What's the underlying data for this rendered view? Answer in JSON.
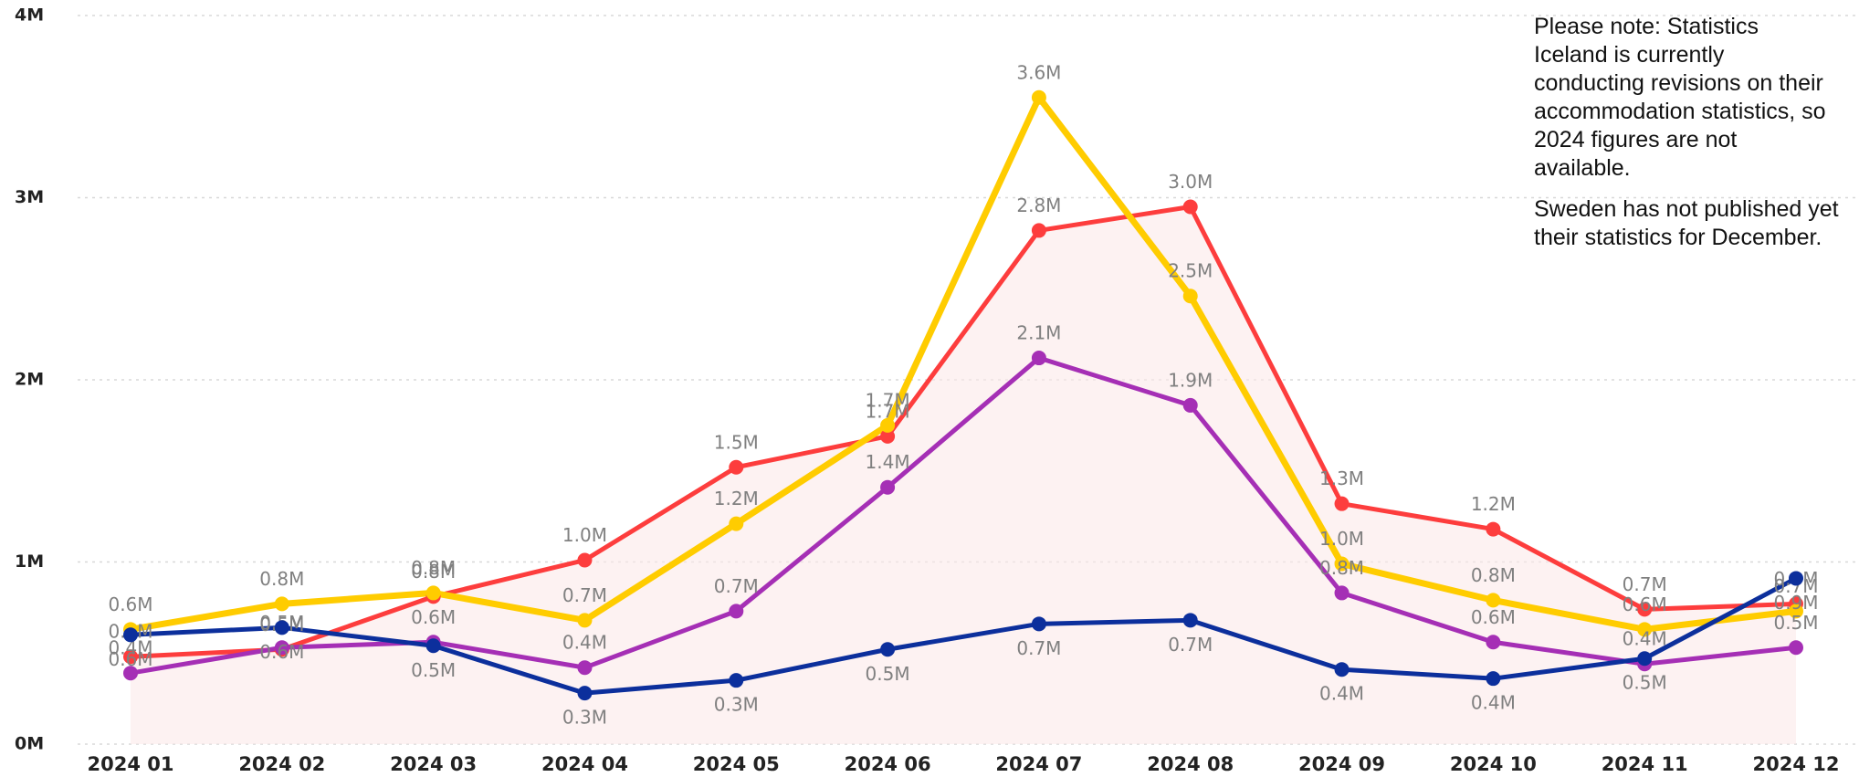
{
  "chart_data": {
    "type": "line",
    "categories": [
      "2024 01",
      "2024 02",
      "2024 03",
      "2024 04",
      "2024 05",
      "2024 06",
      "2024 07",
      "2024 08",
      "2024 09",
      "2024 10",
      "2024 11",
      "2024 12"
    ],
    "series": [
      {
        "color": "#fd3d3d",
        "values": [
          0.48,
          0.52,
          0.81,
          1.01,
          1.52,
          1.69,
          2.82,
          2.95,
          1.32,
          1.18,
          0.74,
          0.77
        ],
        "value_labels": [
          "0.5M",
          "0.5M",
          "0.8M",
          "1.0M",
          "1.5M",
          "1.7M",
          "2.8M",
          "3.0M",
          "1.3M",
          "1.2M",
          "0.7M",
          "0.8M"
        ]
      },
      {
        "color": "#ffcc00",
        "values": [
          0.63,
          0.77,
          0.83,
          0.68,
          1.21,
          1.75,
          3.55,
          2.46,
          0.99,
          0.79,
          0.63,
          0.73
        ],
        "value_labels": [
          "0.6M",
          "0.8M",
          "0.8M",
          "0.7M",
          "1.2M",
          "1.7M",
          "3.6M",
          "2.5M",
          "1.0M",
          "0.8M",
          "0.6M",
          "0.7M"
        ]
      },
      {
        "color": "#a52fb5",
        "values": [
          0.39,
          0.53,
          0.56,
          0.42,
          0.73,
          1.41,
          2.12,
          1.86,
          0.83,
          0.56,
          0.44,
          0.53
        ],
        "value_labels": [
          "0.4M",
          "0.5M",
          "0.6M",
          "0.4M",
          "0.7M",
          "1.4M",
          "2.1M",
          "1.9M",
          "0.8M",
          "0.6M",
          "0.4M",
          "0.5M"
        ]
      },
      {
        "color": "#0c2f9c",
        "values": [
          0.6,
          0.64,
          0.54,
          0.28,
          0.35,
          0.52,
          0.66,
          0.68,
          0.41,
          0.36,
          0.47,
          0.91
        ],
        "value_labels": [
          "0.6M",
          "0.6M",
          "0.5M",
          "0.3M",
          "0.3M",
          "0.5M",
          "0.7M",
          "0.7M",
          "0.4M",
          "0.4M",
          "0.5M",
          "0.9M"
        ]
      }
    ],
    "ylim": [
      0,
      4
    ],
    "yticks": [
      {
        "value": 0,
        "label": "0M"
      },
      {
        "value": 1,
        "label": "1M"
      },
      {
        "value": 2,
        "label": "2M"
      },
      {
        "value": 3,
        "label": "3M"
      },
      {
        "value": 4,
        "label": "4M"
      }
    ],
    "grid": true,
    "annotations": [
      "Please note: Statistics Iceland is currently conducting revisions on their accommodation statistics, so 2024 figures are not available.",
      "Sweden has not published yet their statistics for December."
    ]
  }
}
